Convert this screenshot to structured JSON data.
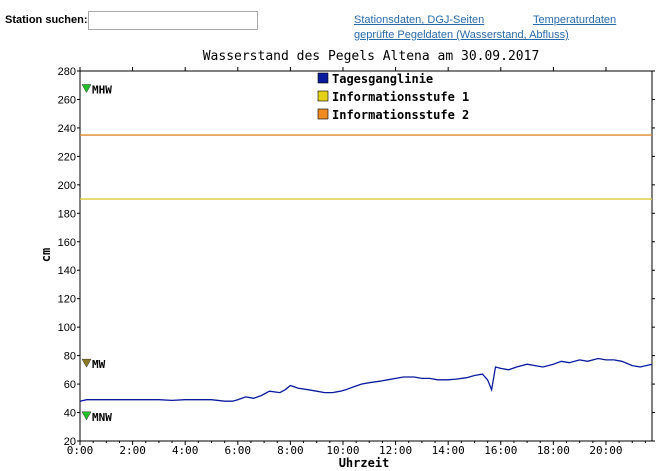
{
  "search": {
    "label": "Station suchen:",
    "value": ""
  },
  "links": {
    "stationsdaten": "Stationsdaten, DGJ-Seiten",
    "temperaturdaten": "Temperaturdaten",
    "gepruefte": "geprüfte Pegeldaten (Wasserstand, Abfluss)"
  },
  "chart_data": {
    "type": "line",
    "title": "Wasserstand des Pegels Altena am  30.09.2017",
    "xlabel": "Uhrzeit",
    "ylabel": "cm",
    "xlim": [
      0,
      21.75
    ],
    "ylim": [
      20,
      280
    ],
    "x_ticks": [
      0,
      2,
      4,
      6,
      8,
      10,
      12,
      14,
      16,
      18,
      20
    ],
    "x_tick_labels": [
      "0:00",
      "2:00",
      "4:00",
      "6:00",
      "8:00",
      "10:00",
      "12:00",
      "14:00",
      "16:00",
      "18:00",
      "20:00"
    ],
    "y_ticks": [
      20,
      40,
      60,
      80,
      100,
      120,
      140,
      160,
      180,
      200,
      220,
      240,
      260,
      280
    ],
    "grid": false,
    "legend_position": "top-center",
    "legend": [
      {
        "name": "Tagesganglinie",
        "color": "#0a1a9c"
      },
      {
        "name": "Informationsstufe 1",
        "color": "#e3d21a"
      },
      {
        "name": "Informationsstufe 2",
        "color": "#ee8a1f"
      }
    ],
    "thresholds": [
      {
        "name": "Informationsstufe 1",
        "value": 190,
        "color": "#dccb3a"
      },
      {
        "name": "Informationsstufe 2",
        "value": 235,
        "color": "#e0892e"
      }
    ],
    "markers": [
      {
        "label": "MHW",
        "value": 267,
        "color": "#22c02a"
      },
      {
        "label": "MW",
        "value": 74,
        "color": "#8a7a26"
      },
      {
        "label": "MNW",
        "value": 37,
        "color": "#22c02a"
      }
    ],
    "series": [
      {
        "name": "Tagesganglinie",
        "color": "#0a1a9c",
        "x": [
          0,
          0.25,
          0.5,
          1,
          1.5,
          2,
          2.5,
          3,
          3.5,
          4,
          4.5,
          5,
          5.5,
          5.8,
          6,
          6.3,
          6.6,
          6.9,
          7.2,
          7.6,
          7.8,
          8,
          8.3,
          8.7,
          9,
          9.3,
          9.6,
          9.9,
          10.1,
          10.4,
          10.7,
          11,
          11.4,
          11.7,
          12,
          12.3,
          12.7,
          13,
          13.3,
          13.6,
          14,
          14.3,
          14.7,
          15,
          15.3,
          15.5,
          15.65,
          15.8,
          16,
          16.3,
          16.6,
          17,
          17.3,
          17.6,
          18,
          18.3,
          18.6,
          19,
          19.3,
          19.7,
          20,
          20.3,
          20.6,
          21,
          21.3,
          21.75
        ],
        "y": [
          48,
          49,
          49,
          49,
          49,
          49,
          49,
          49,
          48.5,
          49,
          49,
          49,
          48,
          48,
          49,
          51,
          50,
          52,
          55,
          54,
          56,
          59,
          57,
          56,
          55,
          54,
          54,
          55,
          56,
          58,
          60,
          61,
          62,
          63,
          64,
          65,
          65,
          64,
          64,
          63,
          63,
          63.5,
          64.5,
          66,
          67,
          63,
          56,
          72,
          71,
          70,
          72,
          74,
          73,
          72,
          74,
          76,
          75,
          77,
          76,
          78,
          77,
          77,
          76,
          73,
          72,
          74
        ]
      }
    ]
  }
}
